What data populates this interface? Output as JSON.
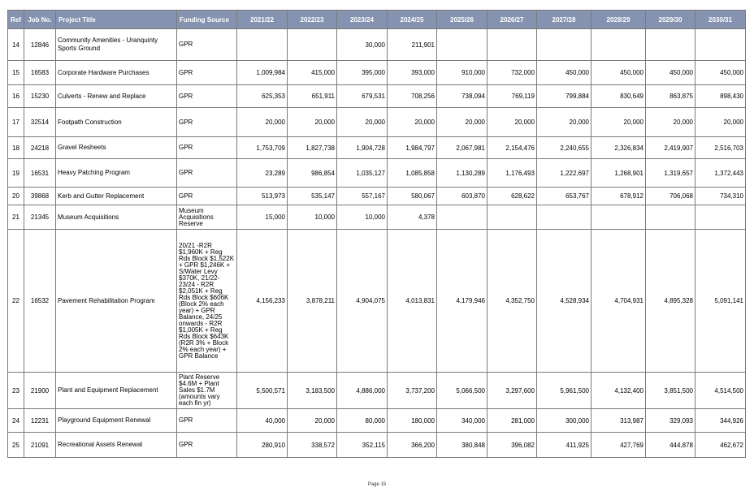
{
  "table": {
    "headers": [
      "Ref",
      "Job No.",
      "Project Title",
      "Funding Source",
      "2021/22",
      "2022/23",
      "2023/24",
      "2024/25",
      "2025/26",
      "2026/27",
      "2027/28",
      "2028/29",
      "2029/30",
      "2030/31"
    ],
    "rows": [
      {
        "ref": "14",
        "job": "12846",
        "title": "Community Amenities - Uranquinty Sports Ground",
        "funding": "GPR",
        "v": [
          "",
          "",
          "30,000",
          "211,901",
          "",
          "",
          "",
          "",
          "",
          ""
        ]
      },
      {
        "ref": "15",
        "job": "16583",
        "title": "Corporate Hardware Purchases",
        "funding": "GPR",
        "v": [
          "1,009,984",
          "415,000",
          "395,000",
          "393,000",
          "910,000",
          "732,000",
          "450,000",
          "450,000",
          "450,000",
          "450,000"
        ]
      },
      {
        "ref": "16",
        "job": "15230",
        "title": "Culverts - Renew and Replace",
        "funding": "GPR",
        "v": [
          "625,353",
          "651,911",
          "679,531",
          "708,256",
          "738,094",
          "769,119",
          "799,884",
          "830,649",
          "863,875",
          "898,430"
        ]
      },
      {
        "ref": "17",
        "job": "32514",
        "title": "Footpath Construction",
        "funding": "GPR",
        "v": [
          "20,000",
          "20,000",
          "20,000",
          "20,000",
          "20,000",
          "20,000",
          "20,000",
          "20,000",
          "20,000",
          "20,000"
        ]
      },
      {
        "ref": "18",
        "job": "24218",
        "title": "Gravel Resheets",
        "funding": "GPR",
        "v": [
          "1,753,709",
          "1,827,738",
          "1,904,728",
          "1,984,797",
          "2,067,981",
          "2,154,476",
          "2,240,655",
          "2,326,834",
          "2,419,907",
          "2,516,703"
        ]
      },
      {
        "ref": "19",
        "job": "16531",
        "title": "Heavy Patching Program",
        "funding": "GPR",
        "v": [
          "23,289",
          "986,854",
          "1,035,127",
          "1,085,858",
          "1,130,289",
          "1,176,493",
          "1,222,697",
          "1,268,901",
          "1,319,657",
          "1,372,443"
        ]
      },
      {
        "ref": "20",
        "job": "39868",
        "title": "Kerb and Gutter Replacement",
        "funding": "GPR",
        "v": [
          "513,973",
          "535,147",
          "557,167",
          "580,067",
          "603,870",
          "628,622",
          "653,767",
          "678,912",
          "706,068",
          "734,310"
        ]
      },
      {
        "ref": "21",
        "job": "21345",
        "title": "Museum Acquisitions",
        "funding": "Museum Acquisitions Reserve",
        "v": [
          "15,000",
          "10,000",
          "10,000",
          "4,378",
          "",
          "",
          "",
          "",
          "",
          ""
        ]
      },
      {
        "ref": "22",
        "job": "16532",
        "title": "Pavement Rehabilitation Program",
        "funding": "20/21 -R2R $1,960K + Reg Rds Block $1,522K + GPR $1,246K + S/Water Levy $370K, 21/22-23/24 - R2R $2,051K + Reg Rds Block $606K (Block 2% each year) + GPR Balance, 24/25 onwards - R2R $1,005K + Reg Rds Block $643K (R2R 3% + Block 2% each year) + GPR Balance",
        "v": [
          "4,156,233",
          "3,878,211",
          "4,904,075",
          "4,013,831",
          "4,179,946",
          "4,352,750",
          "4,528,934",
          "4,704,931",
          "4,895,328",
          "5,091,141"
        ]
      },
      {
        "ref": "23",
        "job": "21900",
        "title": "Plant and Equipment Replacement",
        "funding": "Plant Reserve $4.6M + Plant Sales $1.7M (amounts vary each fin yr)",
        "v": [
          "5,500,571",
          "3,183,500",
          "4,886,000",
          "3,737,200",
          "5,066,500",
          "3,297,600",
          "5,961,500",
          "4,132,400",
          "3,851,500",
          "4,514,500"
        ]
      },
      {
        "ref": "24",
        "job": "12231",
        "title": "Playground Equipment Renewal",
        "funding": "GPR",
        "v": [
          "40,000",
          "20,000",
          "80,000",
          "180,000",
          "340,000",
          "281,000",
          "300,000",
          "313,987",
          "329,093",
          "344,926"
        ]
      },
      {
        "ref": "25",
        "job": "21091",
        "title": "Recreational Assets Renewal",
        "funding": "GPR",
        "v": [
          "280,910",
          "338,572",
          "352,115",
          "366,200",
          "380,848",
          "396,082",
          "411,925",
          "427,769",
          "444,878",
          "462,672"
        ]
      }
    ]
  },
  "footer": {
    "page": "Page 15"
  }
}
